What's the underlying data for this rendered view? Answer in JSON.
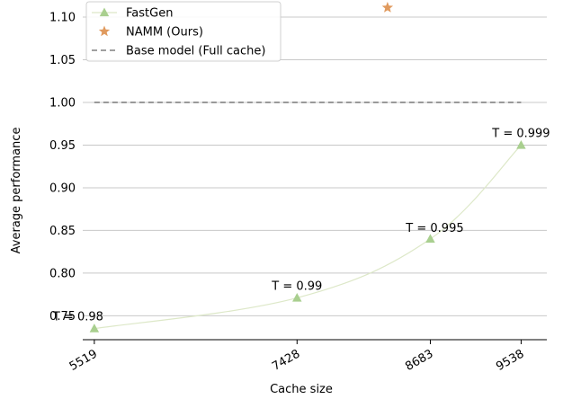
{
  "chart_data": {
    "type": "line",
    "xlabel": "Cache size",
    "ylabel": "Average performance",
    "ylim": [
      0.722,
      1.12
    ],
    "yticks": [
      "0.75",
      "0.80",
      "0.85",
      "0.90",
      "0.95",
      "1.00",
      "1.05",
      "1.10"
    ],
    "ytick_values": [
      0.75,
      0.8,
      0.85,
      0.9,
      0.95,
      1.0,
      1.05,
      1.1
    ],
    "xlim": [
      5410,
      9780
    ],
    "xticks": [
      "5519",
      "7428",
      "8683",
      "9538"
    ],
    "xtick_values": [
      5519,
      7428,
      8683,
      9538
    ],
    "grid": "horizontal",
    "legend_position": "top-left",
    "series": [
      {
        "name": "FastGen",
        "marker": "triangle",
        "color": "#a9cf8f",
        "x": [
          5519,
          7428,
          8683,
          9538
        ],
        "y": [
          0.735,
          0.771,
          0.84,
          0.95
        ],
        "annotations": [
          "T = 0.98",
          "T = 0.99",
          "T = 0.995",
          "T = 0.999"
        ]
      },
      {
        "name": "NAMM (Ours)",
        "marker": "star",
        "color": "#e09a5e",
        "x": [
          8280
        ],
        "y": [
          1.111
        ]
      },
      {
        "name": "Base model (Full cache)",
        "style": "dashed",
        "color": "#808080",
        "x": [
          5519,
          9538
        ],
        "y": [
          1.0,
          1.0
        ]
      }
    ]
  }
}
